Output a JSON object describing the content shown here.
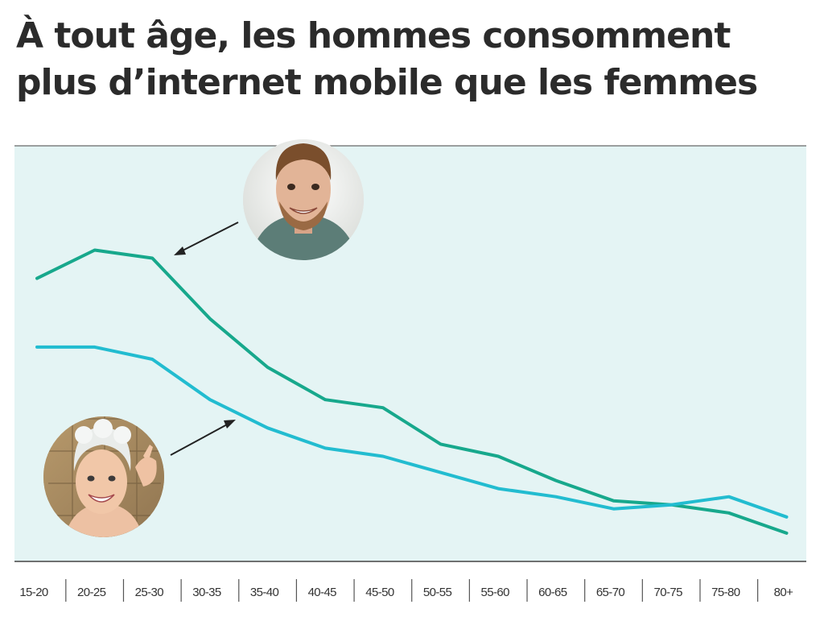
{
  "title": {
    "line1": "À tout âge, les hommes consomment",
    "line2": "plus d’internet mobile que les femmes"
  },
  "colors": {
    "background": "#e4f4f4",
    "men_line": "#17a88c",
    "women_line": "#22bcd0",
    "axis": "#444444",
    "arrow": "#222222"
  },
  "chart_data": {
    "type": "line",
    "title": "À tout âge, les hommes consomment plus d’internet mobile que les femmes",
    "xlabel": "",
    "ylabel": "",
    "categories": [
      "15-20",
      "20-25",
      "25-30",
      "30-35",
      "35-40",
      "40-45",
      "45-50",
      "50-55",
      "55-60",
      "60-65",
      "65-70",
      "70-75",
      "75-80",
      "80+"
    ],
    "ylim": [
      0,
      100
    ],
    "grid": false,
    "series": [
      {
        "values": [
          70,
          77,
          75,
          60,
          48,
          40,
          38,
          29,
          26,
          20,
          15,
          14,
          12,
          7
        ],
        "color": "#17a88c"
      },
      {
        "values": [
          53,
          53,
          50,
          40,
          33,
          28,
          26,
          22,
          18,
          16,
          13,
          14,
          16,
          11
        ],
        "color": "#22bcd0"
      }
    ],
    "annotations": [
      {
        "type": "photo",
        "subject": "man",
        "points_to": "series 1"
      },
      {
        "type": "photo",
        "subject": "woman",
        "points_to": "series 2"
      }
    ]
  },
  "icons": {
    "man_photo": "man-photo-icon",
    "woman_photo": "woman-photo-icon"
  }
}
